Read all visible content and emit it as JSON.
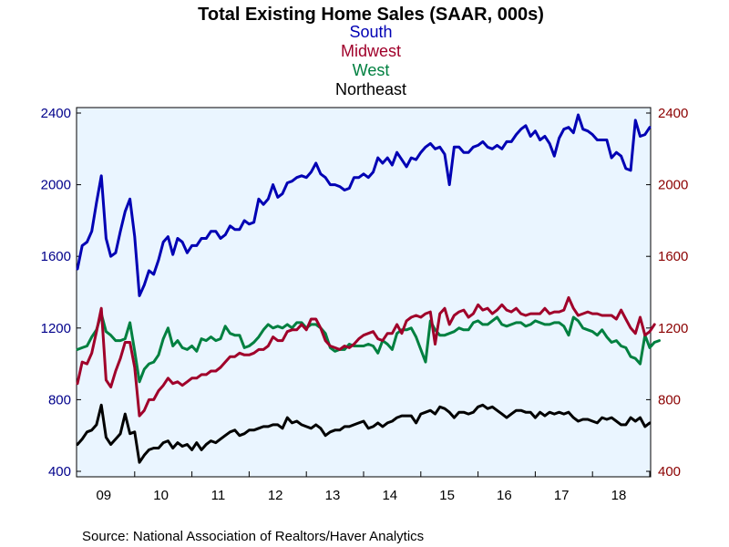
{
  "chart_data": {
    "type": "line",
    "title": "Total Existing Home Sales (SAAR, 000s)",
    "source": "Source:  National Association of Realtors/Haver Analytics",
    "colors": {
      "South": "#0000b4",
      "Midwest": "#a0002a",
      "West": "#008040",
      "Northeast": "#000000",
      "left_axis": "#00008b",
      "right_axis": "#8b0000",
      "plot_background": "#eaf5ff"
    },
    "x_tick_labels": [
      "09",
      "10",
      "11",
      "12",
      "13",
      "14",
      "15",
      "16",
      "17",
      "18"
    ],
    "y_ticks": [
      400,
      800,
      1200,
      1600,
      2000,
      2400
    ],
    "ylim": [
      400,
      2400
    ],
    "left_axis_series": "South",
    "right_axis_series": "Midwest",
    "grid": false,
    "x_start": "2009-01",
    "x_end": "2019-06",
    "series": [
      {
        "name": "South",
        "values": [
          1530,
          1660,
          1680,
          1740,
          1900,
          2050,
          1700,
          1600,
          1620,
          1740,
          1850,
          1920,
          1710,
          1380,
          1440,
          1520,
          1500,
          1580,
          1680,
          1710,
          1610,
          1700,
          1680,
          1620,
          1660,
          1660,
          1700,
          1700,
          1740,
          1740,
          1700,
          1720,
          1770,
          1750,
          1750,
          1800,
          1780,
          1790,
          1920,
          1890,
          1920,
          2000,
          1930,
          1950,
          2010,
          2020,
          2040,
          2050,
          2040,
          2070,
          2120,
          2060,
          2040,
          2000,
          2000,
          1990,
          1970,
          1980,
          2040,
          2040,
          2060,
          2040,
          2070,
          2150,
          2120,
          2150,
          2110,
          2180,
          2140,
          2100,
          2150,
          2140,
          2180,
          2210,
          2230,
          2200,
          2210,
          2170,
          2000,
          2210,
          2210,
          2180,
          2180,
          2210,
          2220,
          2240,
          2210,
          2200,
          2220,
          2200,
          2240,
          2240,
          2280,
          2310,
          2330,
          2270,
          2300,
          2250,
          2270,
          2230,
          2160,
          2260,
          2310,
          2320,
          2290,
          2390,
          2310,
          2300,
          2280,
          2250,
          2250,
          2250,
          2150,
          2180,
          2160,
          2090,
          2080,
          2360,
          2270,
          2280,
          2320
        ]
      },
      {
        "name": "Midwest",
        "values": [
          890,
          1010,
          1000,
          1060,
          1180,
          1310,
          910,
          870,
          960,
          1030,
          1120,
          1120,
          980,
          710,
          740,
          800,
          800,
          850,
          880,
          920,
          890,
          900,
          880,
          900,
          920,
          920,
          940,
          940,
          960,
          960,
          980,
          1010,
          1040,
          1040,
          1060,
          1050,
          1050,
          1060,
          1080,
          1080,
          1100,
          1150,
          1130,
          1130,
          1180,
          1190,
          1190,
          1220,
          1190,
          1250,
          1250,
          1200,
          1130,
          1100,
          1090,
          1080,
          1100,
          1090,
          1110,
          1140,
          1160,
          1170,
          1180,
          1140,
          1130,
          1170,
          1170,
          1220,
          1170,
          1240,
          1260,
          1270,
          1260,
          1280,
          1290,
          1110,
          1280,
          1310,
          1220,
          1270,
          1290,
          1300,
          1260,
          1280,
          1330,
          1300,
          1310,
          1280,
          1300,
          1330,
          1300,
          1290,
          1310,
          1280,
          1270,
          1280,
          1280,
          1280,
          1310,
          1280,
          1290,
          1290,
          1300,
          1370,
          1310,
          1270,
          1280,
          1290,
          1280,
          1280,
          1270,
          1270,
          1270,
          1250,
          1300,
          1250,
          1200,
          1170,
          1260,
          1160,
          1180,
          1220
        ]
      },
      {
        "name": "West",
        "values": [
          1080,
          1090,
          1100,
          1150,
          1190,
          1280,
          1180,
          1160,
          1130,
          1130,
          1140,
          1230,
          1070,
          900,
          970,
          1000,
          1010,
          1050,
          1140,
          1200,
          1100,
          1130,
          1090,
          1080,
          1100,
          1070,
          1140,
          1130,
          1150,
          1130,
          1140,
          1210,
          1170,
          1160,
          1160,
          1090,
          1100,
          1120,
          1150,
          1190,
          1220,
          1200,
          1210,
          1200,
          1220,
          1200,
          1230,
          1230,
          1200,
          1220,
          1220,
          1200,
          1170,
          1090,
          1070,
          1080,
          1080,
          1110,
          1100,
          1100,
          1100,
          1110,
          1100,
          1060,
          1130,
          1110,
          1080,
          1170,
          1190,
          1190,
          1200,
          1150,
          1080,
          1010,
          1240,
          1190,
          1160,
          1160,
          1170,
          1180,
          1200,
          1190,
          1190,
          1230,
          1240,
          1220,
          1220,
          1240,
          1260,
          1220,
          1210,
          1220,
          1230,
          1230,
          1210,
          1220,
          1240,
          1230,
          1220,
          1220,
          1230,
          1230,
          1210,
          1160,
          1260,
          1240,
          1200,
          1190,
          1180,
          1160,
          1190,
          1150,
          1120,
          1130,
          1100,
          1090,
          1040,
          1030,
          1000,
          1160,
          1090,
          1120,
          1130
        ]
      },
      {
        "name": "Northeast",
        "values": [
          550,
          580,
          620,
          630,
          660,
          770,
          590,
          550,
          580,
          610,
          720,
          610,
          620,
          450,
          490,
          520,
          530,
          530,
          560,
          570,
          530,
          560,
          540,
          550,
          520,
          560,
          520,
          550,
          570,
          560,
          580,
          600,
          620,
          630,
          600,
          610,
          630,
          630,
          640,
          650,
          650,
          660,
          660,
          640,
          700,
          670,
          680,
          660,
          650,
          640,
          660,
          640,
          600,
          620,
          630,
          630,
          650,
          650,
          660,
          670,
          680,
          640,
          650,
          670,
          650,
          670,
          680,
          700,
          710,
          710,
          710,
          670,
          720,
          730,
          740,
          720,
          760,
          750,
          730,
          700,
          730,
          730,
          720,
          730,
          760,
          770,
          750,
          760,
          740,
          720,
          700,
          720,
          740,
          740,
          730,
          730,
          700,
          730,
          710,
          730,
          720,
          730,
          720,
          730,
          700,
          680,
          690,
          690,
          680,
          670,
          700,
          690,
          700,
          680,
          660,
          660,
          700,
          680,
          700,
          650,
          670
        ]
      }
    ]
  }
}
